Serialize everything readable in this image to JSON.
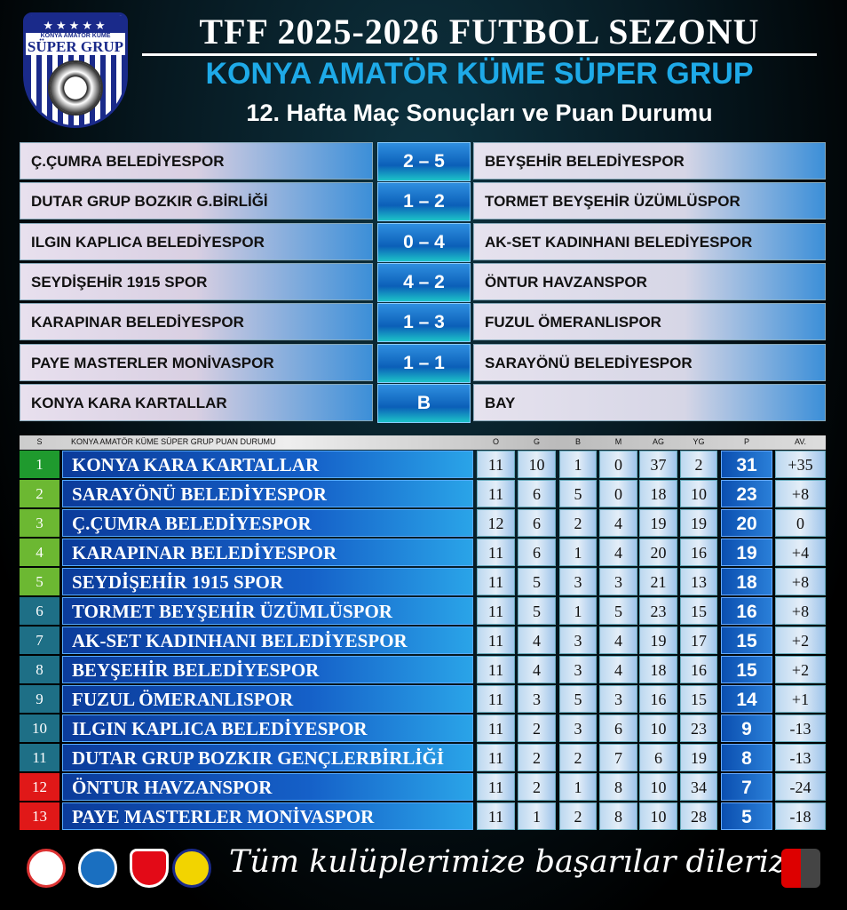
{
  "header": {
    "logo_line1": "KONYA AMATÖR KÜME",
    "logo_line2": "SÜPER GRUP",
    "title": "TFF 2025-2026 FUTBOL SEZONU",
    "subtitle": "KONYA AMATÖR KÜME SÜPER GRUP",
    "week": "12. Hafta Maç Sonuçları ve Puan Durumu"
  },
  "matches": [
    {
      "home": "Ç.ÇUMRA BELEDİYESPOR",
      "score": "2 – 5",
      "away": "BEYŞEHİR BELEDİYESPOR"
    },
    {
      "home": "DUTAR GRUP BOZKIR G.BİRLİĞİ",
      "score": "1 – 2",
      "away": "TORMET BEYŞEHİR ÜZÜMLÜSPOR"
    },
    {
      "home": "ILGIN KAPLICA BELEDİYESPOR",
      "score": "0 – 4",
      "away": "AK-SET KADINHANI BELEDİYESPOR"
    },
    {
      "home": "SEYDİŞEHİR 1915 SPOR",
      "score": "4 – 2",
      "away": "ÖNTUR HAVZANSPOR"
    },
    {
      "home": "KARAPINAR BELEDİYESPOR",
      "score": "1 – 3",
      "away": "FUZUL ÖMERANLISPOR"
    },
    {
      "home": "PAYE MASTERLER MONİVASPOR",
      "score": "1 – 1",
      "away": "SARAYÖNÜ BELEDİYESPOR"
    },
    {
      "home": "KONYA KARA KARTALLAR",
      "score": "B",
      "away": "BAY"
    }
  ],
  "standings": {
    "headers": [
      "S",
      "KONYA AMATÖR KÜME SÜPER GRUP PUAN DURUMU",
      "O",
      "G",
      "B",
      "M",
      "AG",
      "YG",
      "P",
      "AV."
    ],
    "zone_colors": {
      "champion": "#1f9a2e",
      "playoff": "#6cb832",
      "mid": "#1e6f86",
      "relegation": "#e01818"
    },
    "rows": [
      [
        "1",
        "KONYA KARA KARTALLAR",
        "11",
        "10",
        "1",
        "0",
        "37",
        "2",
        "31",
        "+35"
      ],
      [
        "2",
        "SARAYÖNÜ BELEDİYESPOR",
        "11",
        "6",
        "5",
        "0",
        "18",
        "10",
        "23",
        "+8"
      ],
      [
        "3",
        "Ç.ÇUMRA BELEDİYESPOR",
        "12",
        "6",
        "2",
        "4",
        "19",
        "19",
        "20",
        "0"
      ],
      [
        "4",
        "KARAPINAR BELEDİYESPOR",
        "11",
        "6",
        "1",
        "4",
        "20",
        "16",
        "19",
        "+4"
      ],
      [
        "5",
        "SEYDİŞEHİR 1915 SPOR",
        "11",
        "5",
        "3",
        "3",
        "21",
        "13",
        "18",
        "+8"
      ],
      [
        "6",
        "TORMET BEYŞEHİR ÜZÜMLÜSPOR",
        "11",
        "5",
        "1",
        "5",
        "23",
        "15",
        "16",
        "+8"
      ],
      [
        "7",
        "AK-SET KADINHANI BELEDİYESPOR",
        "11",
        "4",
        "3",
        "4",
        "19",
        "17",
        "15",
        "+2"
      ],
      [
        "8",
        "BEYŞEHİR BELEDİYESPOR",
        "11",
        "4",
        "3",
        "4",
        "18",
        "16",
        "15",
        "+2"
      ],
      [
        "9",
        "FUZUL ÖMERANLISPOR",
        "11",
        "3",
        "5",
        "3",
        "16",
        "15",
        "14",
        "+1"
      ],
      [
        "10",
        "ILGIN KAPLICA BELEDİYESPOR",
        "11",
        "2",
        "3",
        "6",
        "10",
        "23",
        "9",
        "-13"
      ],
      [
        "11",
        "DUTAR GRUP BOZKIR GENÇLERBİRLİĞİ",
        "11",
        "2",
        "2",
        "7",
        "6",
        "19",
        "8",
        "-13"
      ],
      [
        "12",
        "ÖNTUR HAVZANSPOR",
        "11",
        "2",
        "1",
        "8",
        "10",
        "34",
        "7",
        "-24"
      ],
      [
        "13",
        "PAYE MASTERLER MONİVASPOR",
        "11",
        "1",
        "2",
        "8",
        "10",
        "28",
        "5",
        "-18"
      ]
    ]
  },
  "footer": {
    "message": "Tüm kulüplerimize başarılar dileriz"
  }
}
